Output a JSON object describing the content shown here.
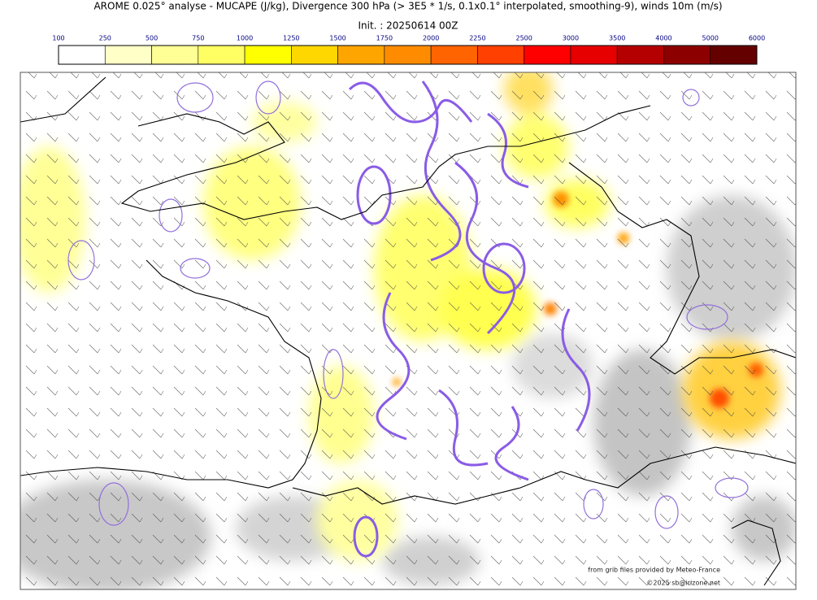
{
  "header": {
    "title": "AROME 0.025° analyse - MUCAPE (J/kg), Divergence 300 hPa (> 3E5 * 1/s, 0.1x0.1° interpolated, smoothing-9), winds 10m (m/s)",
    "init": "Init. : 20250614 00Z"
  },
  "colorbar": {
    "levels": [
      100,
      250,
      500,
      750,
      1000,
      1250,
      1500,
      1750,
      2000,
      2250,
      2500,
      3000,
      3500,
      4000,
      5000,
      6000
    ],
    "colors": [
      "#ffffff",
      "#ffffc8",
      "#ffff96",
      "#ffff64",
      "#ffff00",
      "#ffd700",
      "#ffa500",
      "#ff8c00",
      "#ff6400",
      "#ff4000",
      "#ff0000",
      "#e60000",
      "#b40000",
      "#8c0000",
      "#640000"
    ]
  },
  "credits": [
    "from grib files provided by Meteo-France",
    "©2025 sb@irizone.net"
  ]
}
